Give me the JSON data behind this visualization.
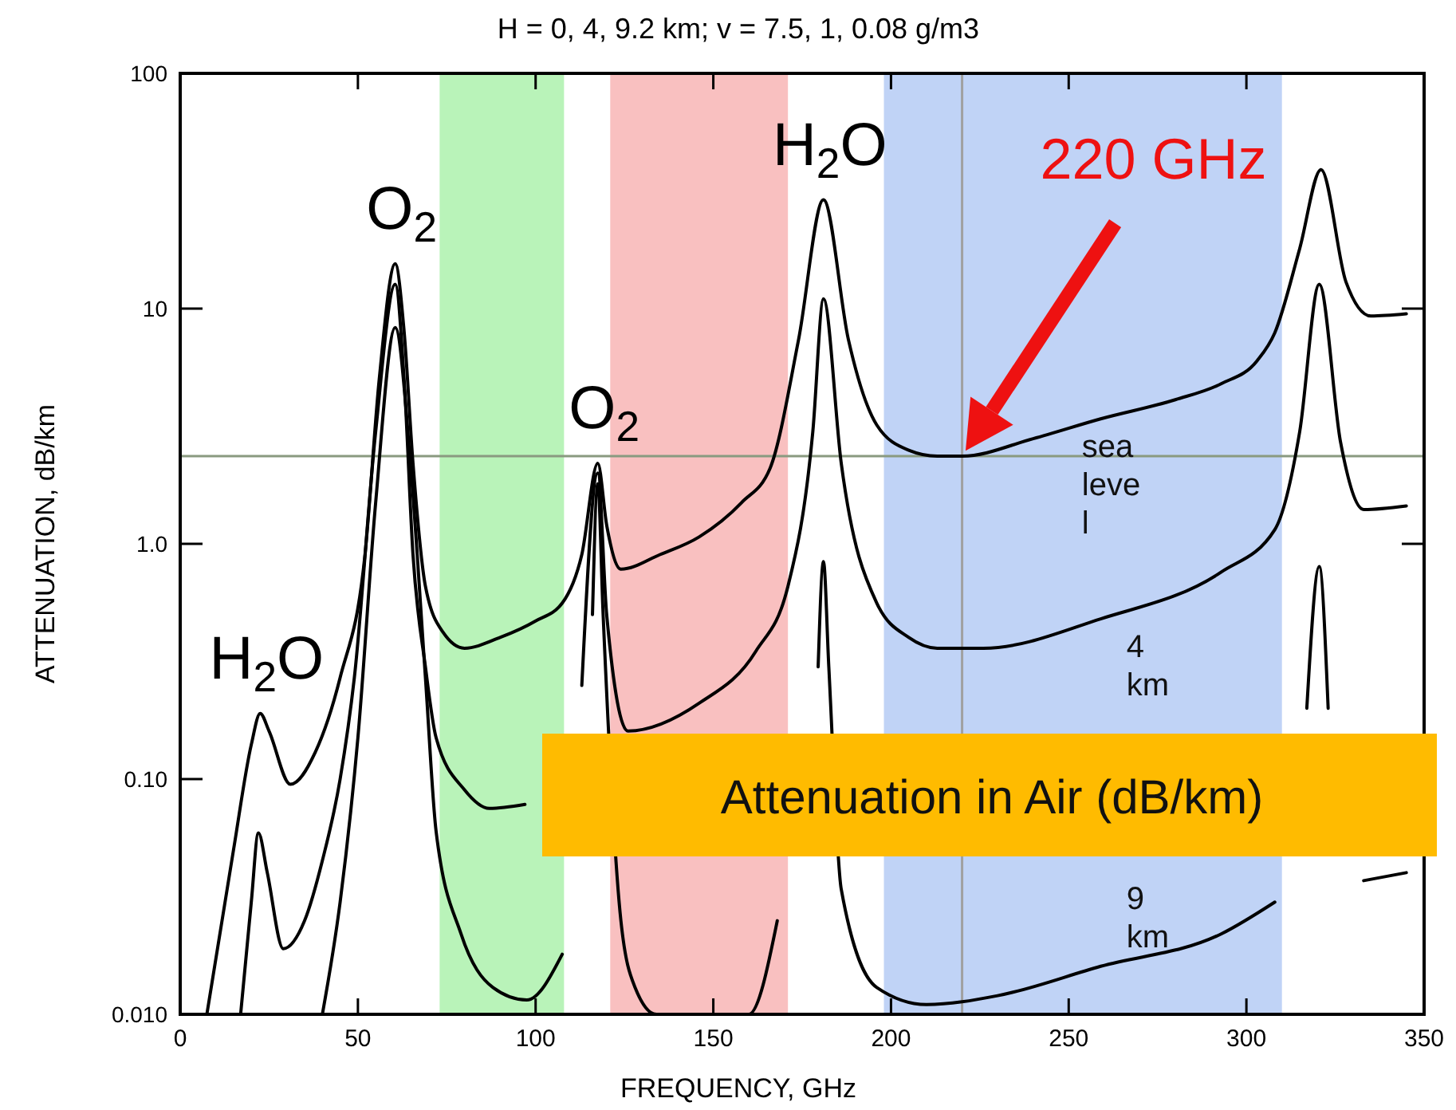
{
  "chart_data": {
    "type": "line",
    "title": "H = 0, 4, 9.2 km; v = 7.5, 1, 0.08 g/m3",
    "xlabel": "FREQUENCY, GHz",
    "ylabel": "ATTENUATION, dB/km",
    "xlim": [
      0,
      350
    ],
    "xticks": [
      0,
      50,
      100,
      150,
      200,
      250,
      300,
      350
    ],
    "ylim": [
      0.01,
      100
    ],
    "yticks": [
      {
        "value": 0.01,
        "label": "0.010"
      },
      {
        "value": 0.1,
        "label": "0.10"
      },
      {
        "value": 1,
        "label": "1.0"
      },
      10,
      100
    ],
    "log": "y",
    "grid": false,
    "legend": false,
    "marker": "none",
    "line_style": "solid",
    "series": [
      {
        "name": "sea level",
        "color": "#000000",
        "x": [
          7.5,
          15,
          20,
          22.5,
          25,
          31,
          38,
          45,
          52,
          56,
          60.5,
          63,
          65.5,
          69,
          74,
          80,
          90,
          100,
          107.5,
          113,
          117.5,
          120,
          124,
          135,
          146,
          158,
          166,
          174,
          181,
          188,
          196,
          205,
          213,
          220,
          240,
          259,
          280,
          293,
          303,
          308,
          315,
          321,
          328,
          335,
          345
        ],
        "values": [
          0.01,
          0.05,
          0.14,
          0.19,
          0.16,
          0.095,
          0.13,
          0.27,
          0.9,
          5,
          15.5,
          8,
          2.2,
          0.66,
          0.42,
          0.36,
          0.4,
          0.47,
          0.56,
          0.9,
          2.2,
          1.2,
          0.78,
          0.9,
          1.07,
          1.5,
          2.1,
          7.4,
          29,
          7.4,
          3.2,
          2.5,
          2.36,
          2.36,
          2.8,
          3.4,
          4.1,
          4.8,
          6,
          7.9,
          18,
          39,
          13,
          9.3,
          9.5
        ]
      },
      {
        "name": "4 km",
        "color": "#000000",
        "x": [
          17,
          20,
          22,
          24.5,
          29,
          35,
          40,
          45,
          49,
          55,
          60.5,
          63,
          65.5,
          69,
          72,
          80,
          87,
          97,
          106,
          113,
          117.5,
          120,
          126,
          146,
          162,
          171,
          178,
          181,
          186,
          196,
          205,
          213,
          226,
          259,
          293,
          308,
          315,
          320.5,
          326.5,
          333,
          345
        ],
        "values": [
          0.01,
          0.03,
          0.059,
          0.04,
          0.019,
          0.025,
          0.045,
          0.1,
          0.27,
          3,
          12.7,
          5,
          0.9,
          0.3,
          0.15,
          0.09,
          0.075,
          0.078,
          null,
          0.25,
          2.0,
          0.5,
          0.16,
          0.21,
          0.35,
          0.66,
          3.0,
          11,
          2.2,
          0.56,
          0.4,
          0.36,
          0.36,
          0.48,
          0.76,
          1.15,
          3.0,
          12.7,
          2.7,
          1.4,
          1.45
        ]
      },
      {
        "name": "9 km",
        "color": "#000000",
        "x": [
          40,
          45,
          50,
          55,
          60.5,
          65,
          69,
          72,
          79,
          88,
          97.5,
          107.5,
          112,
          116,
          117.5,
          119,
          124,
          128,
          134,
          160,
          168,
          176,
          179.5,
          181,
          182.5,
          186,
          196,
          210,
          230,
          259,
          293,
          308,
          313,
          317,
          320.5,
          323,
          326.5,
          333,
          345
        ],
        "values": [
          0.01,
          0.03,
          0.15,
          1.5,
          8.3,
          2,
          0.27,
          0.06,
          0.022,
          0.013,
          0.0115,
          0.018,
          null,
          0.5,
          1.8,
          0.5,
          0.025,
          0.013,
          0.01,
          0.01,
          0.025,
          null,
          0.3,
          0.84,
          0.3,
          0.034,
          0.013,
          0.011,
          0.012,
          0.016,
          0.022,
          0.03,
          null,
          0.2,
          0.8,
          0.2,
          null,
          0.037,
          0.04
        ]
      }
    ],
    "bands": [
      {
        "axis": "x",
        "from": 73,
        "to": 108,
        "color": "#a8f0a8"
      },
      {
        "axis": "x",
        "from": 121,
        "to": 171,
        "color": "#f7b0b0"
      },
      {
        "axis": "x",
        "from": 198,
        "to": 310,
        "color": "#b0c8f4"
      }
    ],
    "ref_lines": [
      {
        "axis": "y",
        "value": 2.36,
        "color": "#8a9a80"
      },
      {
        "axis": "x",
        "value": 220,
        "color": "#a0a0a0"
      }
    ],
    "annotations": [
      {
        "text": "H$_{2}$O",
        "x": 22.5,
        "y": 0.19
      },
      {
        "text": "O$_{2}$",
        "x": 60.5,
        "y": 15.5
      },
      {
        "text": "O$_{2}$",
        "x": 117.5,
        "y": 2.2
      },
      {
        "text": "H$_{2}$O",
        "x": 181,
        "y": 29
      },
      "220 GHz",
      "Attenuation in Air (dB/km)"
    ]
  }
}
